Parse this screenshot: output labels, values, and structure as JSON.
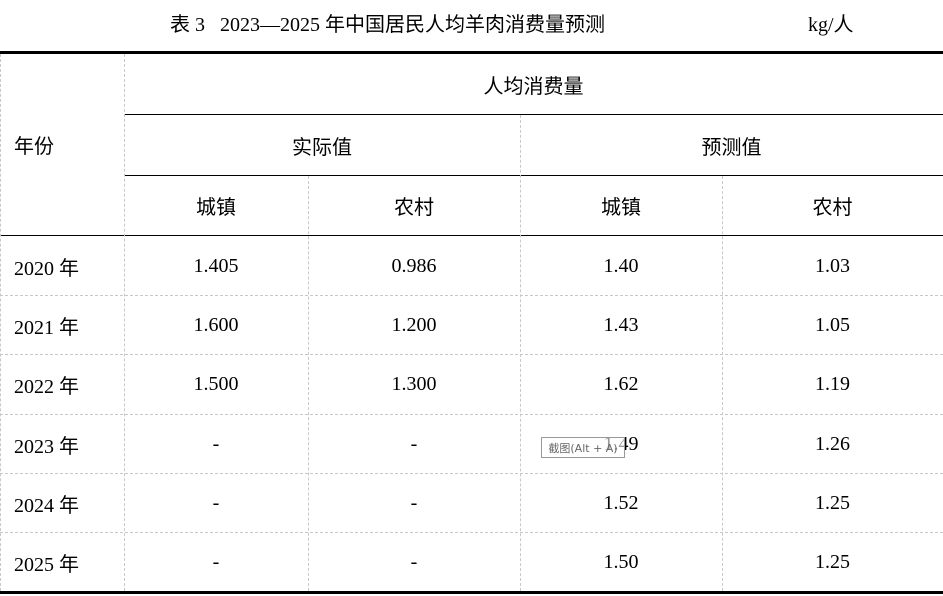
{
  "title": "表 3   2023—2025 年中国居民人均羊肉消费量预测",
  "unit": "kg/人",
  "header": {
    "year": "年份",
    "per_capita": "人均消费量",
    "actual": "实际值",
    "forecast": "预测值",
    "urban": "城镇",
    "rural": "农村"
  },
  "rows": [
    {
      "year": "2020 年",
      "actual_urban": "1.405",
      "actual_rural": "0.986",
      "forecast_urban": "1.40",
      "forecast_rural": "1.03"
    },
    {
      "year": "2021 年",
      "actual_urban": "1.600",
      "actual_rural": "1.200",
      "forecast_urban": "1.43",
      "forecast_rural": "1.05"
    },
    {
      "year": "2022 年",
      "actual_urban": "1.500",
      "actual_rural": "1.300",
      "forecast_urban": "1.62",
      "forecast_rural": "1.19"
    },
    {
      "year": "2023 年",
      "actual_urban": "-",
      "actual_rural": "-",
      "forecast_urban": "1.49",
      "forecast_rural": "1.26"
    },
    {
      "year": "2024 年",
      "actual_urban": "-",
      "actual_rural": "-",
      "forecast_urban": "1.52",
      "forecast_rural": "1.25"
    },
    {
      "year": "2025 年",
      "actual_urban": "-",
      "actual_rural": "-",
      "forecast_urban": "1.50",
      "forecast_rural": "1.25"
    }
  ],
  "tooltip": "截图(Alt + A)"
}
